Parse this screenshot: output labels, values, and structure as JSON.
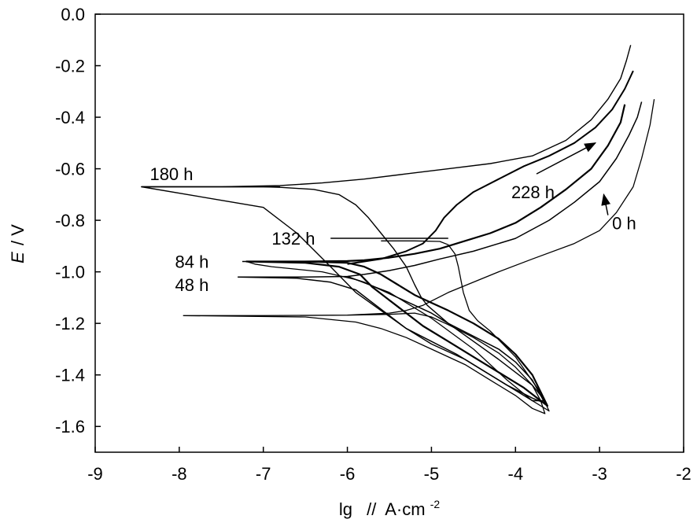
{
  "chart_data": {
    "type": "line",
    "title": "",
    "xlabel": "lg",
    "xunit_prefix": "//",
    "xunit_base": "A·cm",
    "xunit_sup": "-2",
    "ylabel_italic": "E",
    "ylabel_rest": "/ V",
    "xlim": [
      -9,
      -2
    ],
    "ylim": [
      -1.7,
      0.0
    ],
    "xticks": [
      -9,
      -8,
      -7,
      -6,
      -5,
      -4,
      -3,
      -2
    ],
    "xtick_labels": [
      "-9",
      "-8",
      "-7",
      "-6",
      "-5",
      "-4",
      "-3",
      "-2"
    ],
    "yticks": [
      0.0,
      -0.2,
      -0.4,
      -0.6,
      -0.8,
      -1.0,
      -1.2,
      -1.4,
      -1.6
    ],
    "ytick_labels": [
      "0.0",
      "-0.2",
      "-0.4",
      "-0.6",
      "-0.8",
      "-1.0",
      "-1.2",
      "-1.4",
      "-1.6"
    ],
    "grid": false,
    "series": [
      {
        "name": "0 h",
        "ecorr": -1.17,
        "x": [
          -7.95,
          -7.0,
          -6.0,
          -5.5,
          -5.2,
          -5.0,
          -4.8,
          -4.5,
          -4.2,
          -4.0,
          -3.8,
          -3.7,
          -3.65,
          -3.8,
          -4.0,
          -4.3,
          -4.6,
          -5.0,
          -5.3,
          -5.6,
          -5.9,
          -6.5,
          -7.95,
          -7.0,
          -6.0,
          -5.5,
          -5.3,
          -5.1,
          -4.8,
          -4.2,
          -3.8,
          -3.3,
          -3.0,
          -2.8,
          -2.6,
          -2.5,
          -2.4,
          -2.35
        ],
        "y": [
          -1.17,
          -1.17,
          -1.168,
          -1.165,
          -1.16,
          -1.175,
          -1.205,
          -1.255,
          -1.315,
          -1.37,
          -1.44,
          -1.5,
          -1.55,
          -1.53,
          -1.48,
          -1.42,
          -1.36,
          -1.3,
          -1.255,
          -1.22,
          -1.195,
          -1.175,
          -1.17,
          -1.17,
          -1.168,
          -1.16,
          -1.15,
          -1.13,
          -1.08,
          -1.0,
          -0.95,
          -0.89,
          -0.84,
          -0.77,
          -0.67,
          -0.56,
          -0.43,
          -0.33
        ]
      },
      {
        "name": "48 h",
        "ecorr": -1.02,
        "x": [
          -7.3,
          -6.5,
          -6.0,
          -5.9,
          -5.8,
          -5.6,
          -5.4,
          -5.2,
          -5.0,
          -4.8,
          -4.5,
          -4.2,
          -4.0,
          -3.8,
          -3.65,
          -3.8,
          -4.1,
          -4.4,
          -4.7,
          -5.0,
          -5.3,
          -5.5,
          -5.7,
          -5.9,
          -6.2,
          -6.6,
          -7.3,
          -6.5,
          -6.0,
          -5.8,
          -5.5,
          -5.2,
          -4.9,
          -4.5,
          -4.0,
          -3.6,
          -3.3,
          -3.0,
          -2.8,
          -2.65,
          -2.55,
          -2.5
        ],
        "y": [
          -1.02,
          -1.02,
          -1.018,
          -1.03,
          -1.04,
          -1.07,
          -1.1,
          -1.13,
          -1.16,
          -1.2,
          -1.25,
          -1.3,
          -1.35,
          -1.42,
          -1.51,
          -1.49,
          -1.44,
          -1.38,
          -1.32,
          -1.27,
          -1.22,
          -1.17,
          -1.12,
          -1.07,
          -1.04,
          -1.025,
          -1.02,
          -1.02,
          -1.018,
          -1.01,
          -0.995,
          -0.975,
          -0.95,
          -0.92,
          -0.87,
          -0.8,
          -0.73,
          -0.65,
          -0.56,
          -0.47,
          -0.4,
          -0.34
        ]
      },
      {
        "name": "84 h",
        "ecorr": -0.96,
        "x": [
          -7.2,
          -6.5,
          -6.0,
          -5.8,
          -5.6,
          -5.4,
          -5.2,
          -5.0,
          -4.8,
          -4.5,
          -4.2,
          -4.0,
          -3.8,
          -3.62,
          -3.7,
          -3.9,
          -4.2,
          -4.5,
          -4.8,
          -5.1,
          -5.3,
          -5.5,
          -5.7,
          -5.85,
          -6.1,
          -6.5,
          -7.2,
          -6.5,
          -6.0,
          -5.8,
          -5.5,
          -5.2,
          -4.9,
          -4.6,
          -4.3,
          -4.0,
          -3.7,
          -3.4,
          -3.1,
          -2.9,
          -2.75,
          -2.7
        ],
        "y": [
          -0.96,
          -0.96,
          -0.965,
          -0.98,
          -1.01,
          -1.05,
          -1.09,
          -1.12,
          -1.15,
          -1.2,
          -1.26,
          -1.32,
          -1.4,
          -1.52,
          -1.5,
          -1.45,
          -1.39,
          -1.33,
          -1.27,
          -1.21,
          -1.16,
          -1.11,
          -1.06,
          -1.01,
          -0.98,
          -0.965,
          -0.96,
          -0.96,
          -0.958,
          -0.955,
          -0.945,
          -0.93,
          -0.91,
          -0.88,
          -0.85,
          -0.81,
          -0.75,
          -0.68,
          -0.6,
          -0.51,
          -0.42,
          -0.35
        ]
      },
      {
        "name": "132 h",
        "ecorr": -0.88,
        "x": [
          -5.6,
          -5.2,
          -4.9,
          -4.8,
          -4.72,
          -4.68,
          -4.62,
          -4.55,
          -4.45,
          -4.3,
          -4.15,
          -4.0,
          -3.85,
          -3.7,
          -3.6,
          -3.8,
          -4.1,
          -4.5,
          -5.0,
          -5.5,
          -5.9,
          -6.3,
          -6.6,
          -6.9,
          -7.1,
          -7.2
        ],
        "y": [
          -0.88,
          -0.88,
          -0.882,
          -0.895,
          -0.93,
          -0.98,
          -1.08,
          -1.15,
          -1.19,
          -1.23,
          -1.28,
          -1.33,
          -1.4,
          -1.47,
          -1.54,
          -1.5,
          -1.42,
          -1.3,
          -1.18,
          -1.08,
          -1.03,
          -1.0,
          -0.99,
          -0.98,
          -0.97,
          -0.96
        ]
      },
      {
        "name": "180 h",
        "ecorr": -0.67,
        "x": [
          -8.45,
          -8.0,
          -7.5,
          -7.0,
          -6.8,
          -6.4,
          -6.1,
          -5.9,
          -5.75,
          -5.6,
          -5.45,
          -5.3,
          -5.2,
          -5.12,
          -5.05,
          -4.8,
          -4.5,
          -4.2,
          -4.0,
          -3.8,
          -3.65,
          -3.8,
          -4.0,
          -4.3,
          -4.6,
          -5.0,
          -5.3,
          -5.6,
          -5.9,
          -6.2,
          -6.6,
          -7.0,
          -8.45,
          -7.5,
          -6.8,
          -6.3,
          -5.8,
          -5.3,
          -4.8,
          -4.3,
          -3.8,
          -3.4,
          -3.1,
          -2.9,
          -2.75,
          -2.68,
          -2.63
        ],
        "y": [
          -0.67,
          -0.67,
          -0.67,
          -0.67,
          -0.672,
          -0.68,
          -0.7,
          -0.74,
          -0.79,
          -0.85,
          -0.91,
          -0.98,
          -1.05,
          -1.1,
          -1.13,
          -1.2,
          -1.27,
          -1.34,
          -1.39,
          -1.44,
          -1.5,
          -1.5,
          -1.46,
          -1.4,
          -1.34,
          -1.28,
          -1.22,
          -1.15,
          -1.08,
          -0.98,
          -0.85,
          -0.75,
          -0.67,
          -0.67,
          -0.665,
          -0.655,
          -0.64,
          -0.62,
          -0.6,
          -0.58,
          -0.55,
          -0.49,
          -0.41,
          -0.33,
          -0.25,
          -0.18,
          -0.12
        ]
      },
      {
        "name": "228 h",
        "ecorr": -0.96,
        "x": [
          -6.0,
          -5.6,
          -5.3,
          -5.1,
          -4.95,
          -4.85,
          -4.7,
          -4.5,
          -4.2,
          -3.9,
          -3.6,
          -3.3,
          -3.05,
          -2.85,
          -2.7,
          -2.6
        ],
        "y": [
          -0.97,
          -0.95,
          -0.92,
          -0.89,
          -0.84,
          -0.79,
          -0.74,
          -0.69,
          -0.64,
          -0.59,
          -0.55,
          -0.5,
          -0.44,
          -0.37,
          -0.29,
          -0.22
        ]
      }
    ],
    "annotations": [
      {
        "text": "180 h",
        "x": -8.35,
        "y": -0.62,
        "lx1": -8.45,
        "ly1": -0.67,
        "lx2": -6.8,
        "ly2": -0.67
      },
      {
        "text": "132 h",
        "x": -6.9,
        "y": -0.87,
        "lx1": -6.2,
        "ly1": -0.87,
        "lx2": -4.8,
        "ly2": -0.87
      },
      {
        "text": "84 h",
        "x": -8.05,
        "y": -0.96,
        "lx1": -7.25,
        "ly1": -0.96,
        "lx2": -6.6,
        "ly2": -0.96
      },
      {
        "text": "48 h",
        "x": -8.05,
        "y": -1.05,
        "lx1": -7.3,
        "ly1": -1.02,
        "lx2": -6.6,
        "ly2": -1.02
      },
      {
        "text": "228 h",
        "x": -4.05,
        "y": -0.69,
        "lx1": -3.75,
        "ly1": -0.62,
        "lx2": -3.05,
        "ly2": -0.5,
        "arrow": true
      },
      {
        "text": "0 h",
        "x": -2.85,
        "y": -0.81,
        "lx1": -2.9,
        "ly1": -0.78,
        "lx2": -2.95,
        "ly2": -0.7,
        "arrow": true
      }
    ]
  }
}
